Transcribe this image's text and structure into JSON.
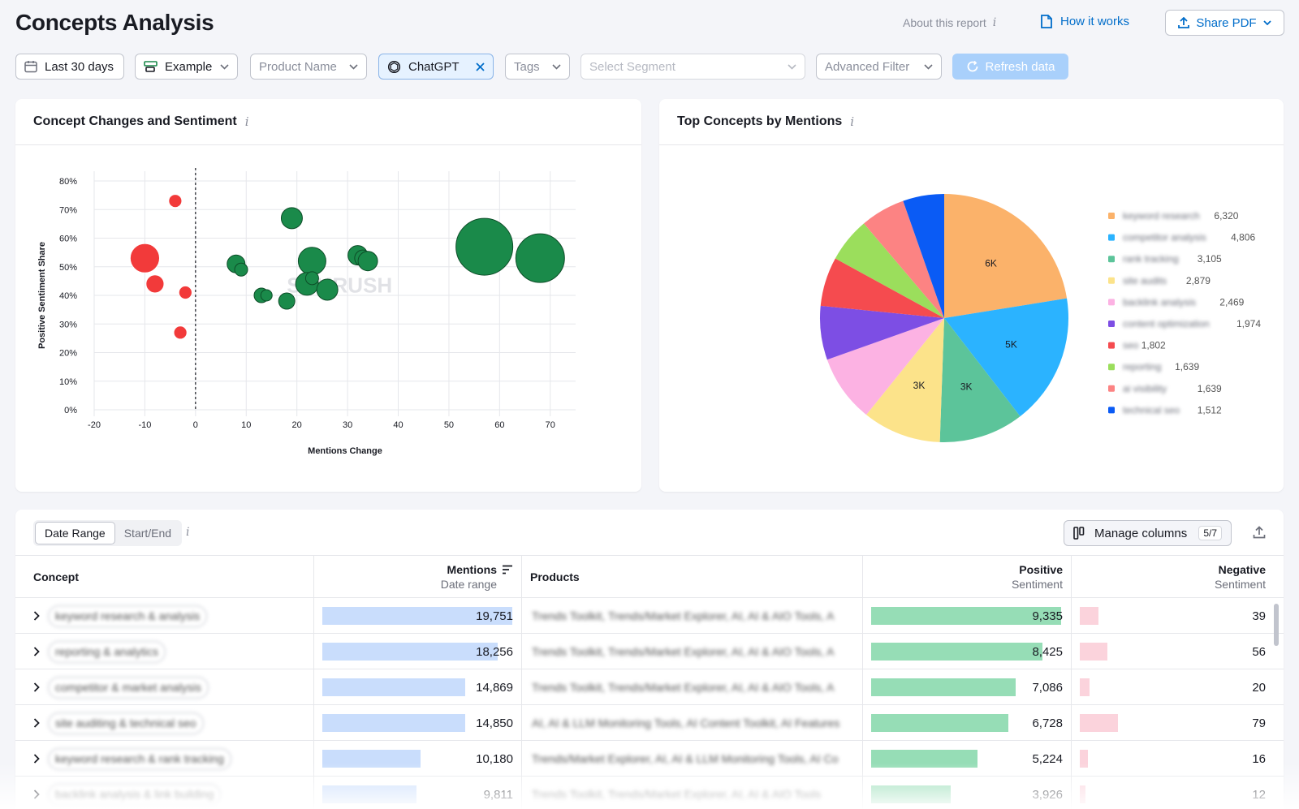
{
  "header": {
    "title": "Concepts Analysis",
    "about": "About this report",
    "how_it_works": "How it works",
    "share_pdf": "Share PDF"
  },
  "filters": {
    "date": "Last 30 days",
    "project": "Example",
    "product_placeholder": "Product Name",
    "llm": "ChatGPT",
    "tags_placeholder": "Tags",
    "segment_placeholder": "Select Segment",
    "advanced": "Advanced Filter",
    "refresh": "Refresh data"
  },
  "scatter_card": {
    "title": "Concept Changes and Sentiment"
  },
  "pie_card": {
    "title": "Top Concepts by Mentions"
  },
  "watermark": "SEMRUSH",
  "chart_data": [
    {
      "type": "scatter",
      "title": "Concept Changes and Sentiment",
      "xlabel": "Mentions Change",
      "ylabel": "Positive Sentiment Share",
      "xlim": [
        -20,
        75
      ],
      "ylim": [
        0,
        80
      ],
      "xticks": [
        -20,
        -10,
        0,
        10,
        20,
        30,
        40,
        50,
        60,
        70
      ],
      "yticks": [
        "0%",
        "10%",
        "20%",
        "30%",
        "40%",
        "50%",
        "60%",
        "70%",
        "80%"
      ],
      "reference_line_x": 0,
      "colors": {
        "negative": "#f23a3a",
        "positive": "#1a8a4a"
      },
      "points": [
        {
          "x": -4,
          "y": 73,
          "r": 8
        },
        {
          "x": -10,
          "y": 53,
          "r": 18
        },
        {
          "x": -8,
          "y": 44,
          "r": 11
        },
        {
          "x": -2,
          "y": 41,
          "r": 8
        },
        {
          "x": -3,
          "y": 27,
          "r": 8
        },
        {
          "x": 19,
          "y": 67,
          "r": 13
        },
        {
          "x": 8,
          "y": 51,
          "r": 11
        },
        {
          "x": 9,
          "y": 49,
          "r": 8
        },
        {
          "x": 23,
          "y": 52,
          "r": 17
        },
        {
          "x": 22,
          "y": 44,
          "r": 14
        },
        {
          "x": 23,
          "y": 46,
          "r": 8
        },
        {
          "x": 26,
          "y": 42,
          "r": 13
        },
        {
          "x": 13,
          "y": 40,
          "r": 9
        },
        {
          "x": 14,
          "y": 40,
          "r": 7
        },
        {
          "x": 18,
          "y": 38,
          "r": 10
        },
        {
          "x": 32,
          "y": 54,
          "r": 12
        },
        {
          "x": 33,
          "y": 53,
          "r": 10
        },
        {
          "x": 34,
          "y": 52,
          "r": 12
        },
        {
          "x": 57,
          "y": 57,
          "r": 35
        },
        {
          "x": 68,
          "y": 53,
          "r": 30
        }
      ]
    },
    {
      "type": "pie",
      "title": "Top Concepts by Mentions",
      "slices": [
        {
          "label": "keyword research",
          "value": 6320,
          "display": "6,320",
          "slice_label": "6K",
          "color": "#fbb26a"
        },
        {
          "label": "competitor analysis",
          "value": 4806,
          "display": "4,806",
          "slice_label": "5K",
          "color": "#2bb3ff"
        },
        {
          "label": "rank tracking",
          "value": 3105,
          "display": "3,105",
          "slice_label": "3K",
          "color": "#5cc49a"
        },
        {
          "label": "site audits",
          "value": 2879,
          "display": "2,879",
          "slice_label": "3K",
          "color": "#fce38a"
        },
        {
          "label": "backlink analysis",
          "value": 2469,
          "display": "2,469",
          "slice_label": "",
          "color": "#fcb2e3"
        },
        {
          "label": "content optimization",
          "value": 1974,
          "display": "1,974",
          "slice_label": "",
          "color": "#7d4ee4"
        },
        {
          "label": "seo",
          "value": 1802,
          "display": "1,802",
          "slice_label": "",
          "color": "#f54b4f"
        },
        {
          "label": "reporting",
          "value": 1639,
          "display": "1,639",
          "slice_label": "",
          "color": "#9bde5c"
        },
        {
          "label": "ai visibility",
          "value": 1639,
          "display": "1,639",
          "slice_label": "",
          "color": "#fc8383"
        },
        {
          "label": "technical seo",
          "value": 1512,
          "display": "1,512",
          "slice_label": "",
          "color": "#0a5bf5"
        }
      ]
    }
  ],
  "table": {
    "tabs": [
      "Date Range",
      "Start/End"
    ],
    "manage_columns": "Manage columns",
    "columns_count": "5/7",
    "columns": {
      "concept": "Concept",
      "mentions": "Mentions",
      "mentions_sub": "Date range",
      "products": "Products",
      "positive": "Positive",
      "positive_sub": "Sentiment",
      "negative": "Negative",
      "negative_sub": "Sentiment"
    },
    "max_mentions": 19751,
    "max_positive": 9335,
    "max_negative": 100,
    "rows": [
      {
        "concept": "keyword research & analysis",
        "mentions": 19751,
        "mentions_fmt": "19,751",
        "products": "Trends Toolkit, Trends/Market Explorer, AI, AI & AIO Tools, A",
        "positive": 9335,
        "positive_fmt": "9,335",
        "negative": 39,
        "negative_fmt": "39"
      },
      {
        "concept": "reporting & analytics",
        "mentions": 18256,
        "mentions_fmt": "18,256",
        "products": "Trends Toolkit, Trends/Market Explorer, AI, AI & AIO Tools, A",
        "positive": 8425,
        "positive_fmt": "8,425",
        "negative": 56,
        "negative_fmt": "56"
      },
      {
        "concept": "competitor & market analysis",
        "mentions": 14869,
        "mentions_fmt": "14,869",
        "products": "Trends Toolkit, Trends/Market Explorer, AI, AI & AIO Tools, A",
        "positive": 7086,
        "positive_fmt": "7,086",
        "negative": 20,
        "negative_fmt": "20"
      },
      {
        "concept": "site auditing & technical seo",
        "mentions": 14850,
        "mentions_fmt": "14,850",
        "products": "AI, AI & LLM Monitoring Tools, AI Content Toolkit, AI Features",
        "positive": 6728,
        "positive_fmt": "6,728",
        "negative": 79,
        "negative_fmt": "79"
      },
      {
        "concept": "keyword research & rank tracking",
        "mentions": 10180,
        "mentions_fmt": "10,180",
        "products": "Trends/Market Explorer, AI, AI & LLM Monitoring Tools, AI Co",
        "positive": 5224,
        "positive_fmt": "5,224",
        "negative": 16,
        "negative_fmt": "16"
      },
      {
        "concept": "backlink analysis & link building",
        "mentions": 9811,
        "mentions_fmt": "9,811",
        "products": "Trends Toolkit, Trends/Market Explorer, AI, AI & AIO Tools",
        "positive": 3926,
        "positive_fmt": "3,926",
        "negative": 12,
        "negative_fmt": "12"
      }
    ]
  }
}
